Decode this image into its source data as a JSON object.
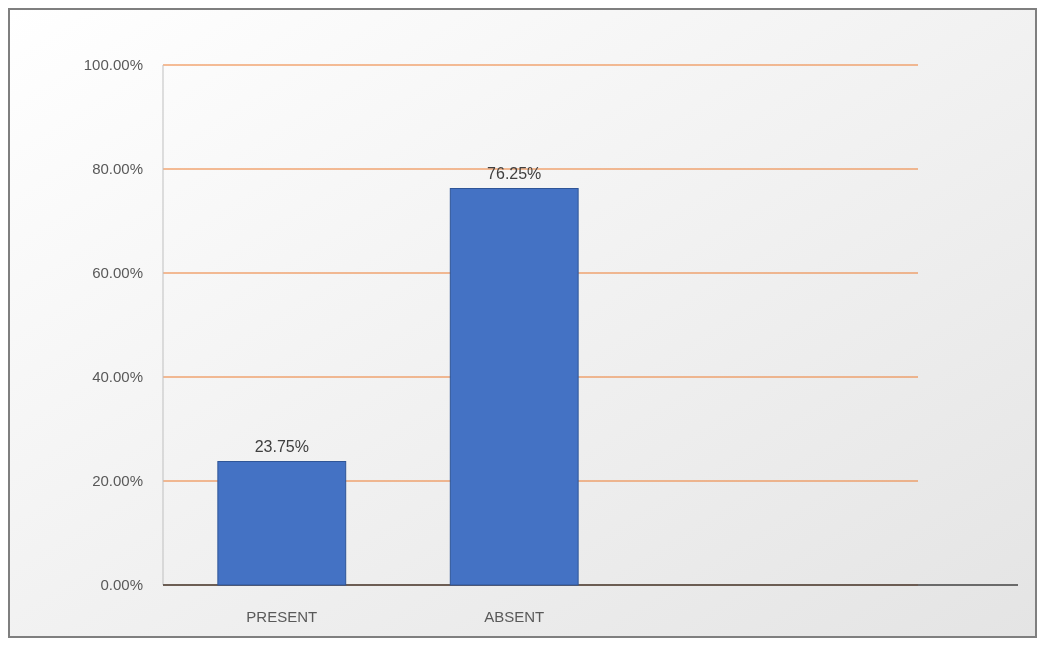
{
  "chart_data": {
    "type": "bar",
    "categories": [
      "PRESENT",
      "ABSENT"
    ],
    "values": [
      23.75,
      76.25
    ],
    "color": "#4472c4",
    "ylim": [
      0,
      100
    ],
    "yticks": [
      {
        "value": 0,
        "label": "0.00%"
      },
      {
        "value": 20,
        "label": "20.00%"
      },
      {
        "value": 40,
        "label": "40.00%"
      },
      {
        "value": 60,
        "label": "60.00%"
      },
      {
        "value": 80,
        "label": "80.00%"
      },
      {
        "value": 100,
        "label": "100.00%"
      }
    ],
    "value_labels": [
      "23.75%",
      "76.25%"
    ],
    "grid": "y"
  }
}
